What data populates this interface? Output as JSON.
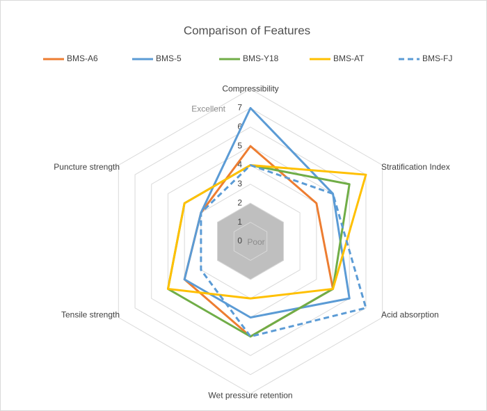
{
  "chart_data": {
    "type": "radar",
    "title": "Comparison of Features",
    "categories": [
      "Compressibility",
      "Stratification Index",
      "Acid absorption",
      "Wet pressure retention",
      "Tensile strength",
      "Puncture strength"
    ],
    "series": [
      {
        "name": "BMS-A6",
        "color": "#ed7d31",
        "values": [
          5,
          4,
          5,
          5,
          4,
          3
        ]
      },
      {
        "name": "BMS-5",
        "color": "#5b9bd5",
        "values": [
          7,
          5,
          6,
          4,
          4,
          3
        ]
      },
      {
        "name": "BMS-Y18",
        "color": "#70ad47",
        "values": [
          4,
          6,
          5,
          5,
          5,
          4
        ]
      },
      {
        "name": "BMS-AT",
        "color": "#ffc000",
        "values": [
          4,
          7,
          5,
          3,
          5,
          4
        ]
      },
      {
        "name": "BMS-FJ",
        "color": "#5b9bd5",
        "dashed": true,
        "values": [
          4,
          5,
          7,
          5,
          3,
          3
        ]
      }
    ],
    "ylim": [
      0,
      8
    ],
    "yticks": [
      0,
      1,
      2,
      3,
      4,
      5,
      6,
      7
    ],
    "annotations": [
      "Excellent",
      "Poor"
    ],
    "grid": true,
    "legend": "top"
  }
}
